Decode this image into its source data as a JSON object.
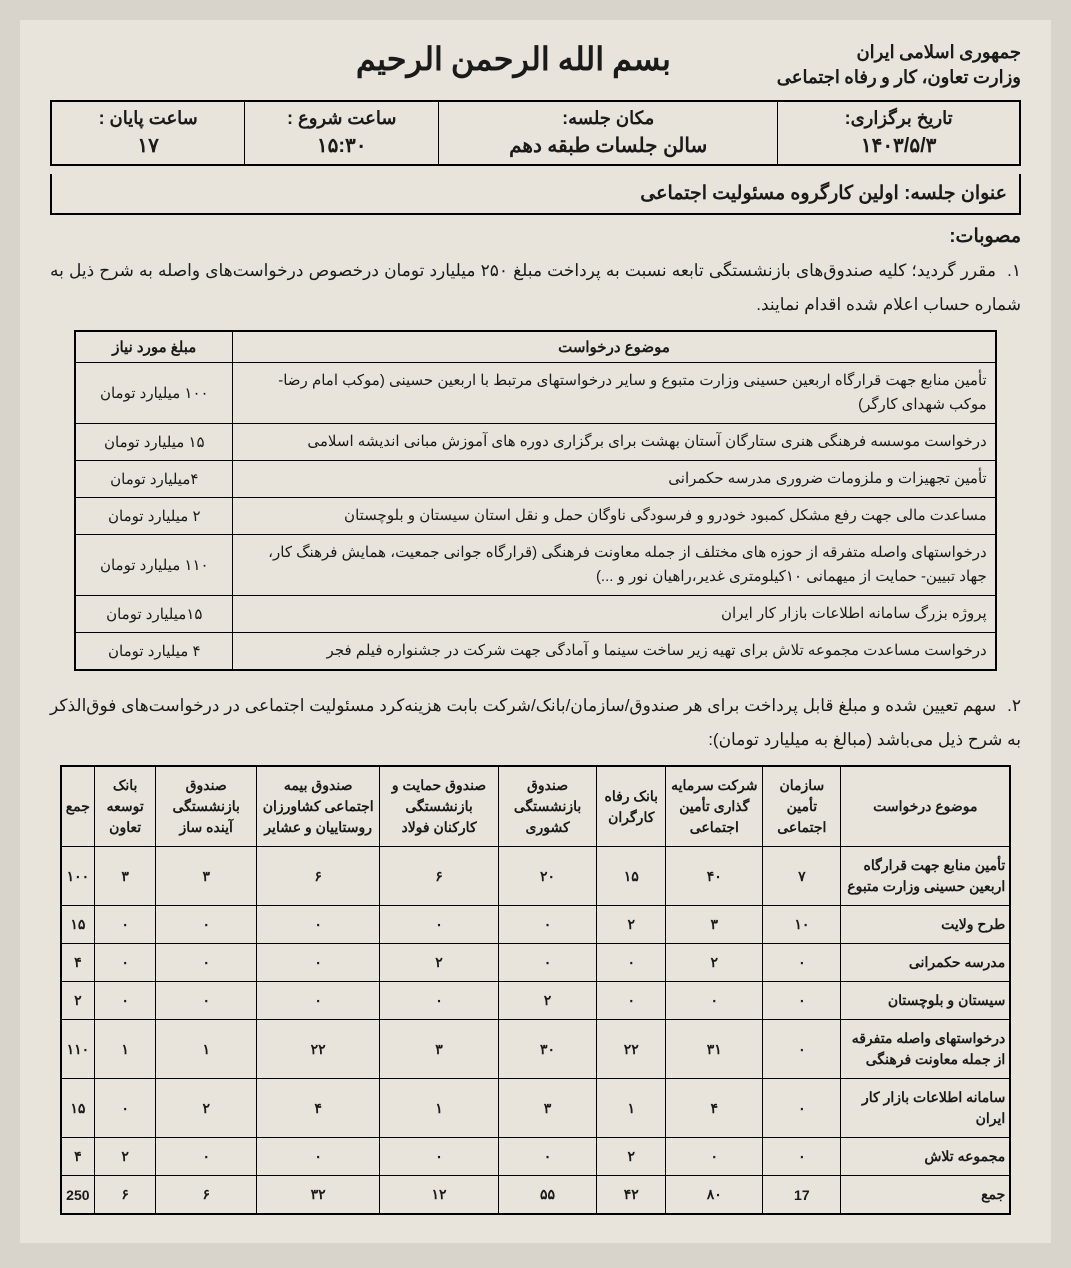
{
  "header": {
    "country": "جمهوری اسلامی ایران",
    "ministry": "وزارت تعاون، کار و رفاه اجتماعی",
    "bismillah": "بسم الله الرحمن الرحیم"
  },
  "meta": {
    "date_label": "تاریخ برگزاری:",
    "date_value": "۱۴۰۳/۵/۳",
    "place_label": "مکان جلسه:",
    "place_value": "سالن جلسات طبقه دهم",
    "start_label": "ساعت شروع :",
    "start_value": "۱۵:۳۰",
    "end_label": "ساعت پایان :",
    "end_value": "۱۷"
  },
  "title": {
    "label": "عنوان جلسه:",
    "value": "اولین کارگروه مسئولیت اجتماعی"
  },
  "approvals_label": "مصوبات:",
  "item1": {
    "num": "۱.",
    "text": "مقرر گردید؛ کلیه صندوق‌های بازنشستگی تابعه نسبت به پرداخت مبلغ ۲۵۰ میلیارد تومان درخصوص درخواست‌های واصله به شرح ذیل به شماره حساب اعلام شده اقدام نمایند."
  },
  "table1": {
    "headers": [
      "موضوع درخواست",
      "مبلغ مورد نیاز"
    ],
    "rows": [
      {
        "desc": "تأمین منابع جهت قرارگاه اربعین حسینی وزارت متبوع و سایر درخواستهای مرتبط با اربعین حسینی (موکب امام رضا-موکب شهدای کارگر)",
        "amount": "۱۰۰ میلیارد تومان"
      },
      {
        "desc": "درخواست موسسه فرهنگی هنری ستارگان آستان بهشت برای برگزاری دوره های آموزش مبانی اندیشه اسلامی",
        "amount": "۱۵ میلیارد تومان"
      },
      {
        "desc": "تأمین تجهیزات و ملزومات ضروری مدرسه حکمرانی",
        "amount": "۴میلیارد تومان"
      },
      {
        "desc": "مساعدت مالی جهت رفع مشکل کمبود خودرو و فرسودگی ناوگان حمل و نقل استان سیستان و بلوچستان",
        "amount": "۲ میلیارد تومان"
      },
      {
        "desc": "درخواستهای واصله متفرقه از حوزه های مختلف از جمله معاونت فرهنگی (قرارگاه جوانی جمعیت، همایش فرهنگ کار، جهاد تبیین- حمایت از میهمانی ۱۰کیلومتری غدیر،راهیان نور و ...)",
        "amount": "۱۱۰ میلیارد تومان"
      },
      {
        "desc": "پروژه بزرگ سامانه اطلاعات بازار کار ایران",
        "amount": "۱۵میلیارد تومان"
      },
      {
        "desc": "درخواست مساعدت مجموعه تلاش برای تهیه زیر ساخت سینما و آمادگی جهت شرکت در جشنواره فیلم فجر",
        "amount": "۴ میلیارد تومان"
      }
    ]
  },
  "item2": {
    "num": "۲.",
    "text": "سهم تعیین شده و مبلغ قابل پرداخت برای هر صندوق/سازمان/بانک/شرکت بابت هزینه‌کرد مسئولیت اجتماعی در درخواست‌های فوق‌الذکر به شرح ذیل می‌باشد (مبالغ به میلیارد تومان):"
  },
  "table2": {
    "headers": [
      "موضوع درخواست",
      "سازمان تأمین اجتماعی",
      "شرکت سرمایه گذاری تأمین اجتماعی",
      "بانک رفاه کارگران",
      "صندوق بازنشستگی کشوری",
      "صندوق حمایت و بازنشستگی کارکنان فولاد",
      "صندوق بیمه اجتماعی کشاورزان روستاییان و عشایر",
      "صندوق بازنشستگی آینده ساز",
      "بانک توسعه تعاون",
      "جمع"
    ],
    "rows": [
      {
        "topic": "تأمین منابع جهت قرارگاه اربعین حسینی وزارت متبوع",
        "c": [
          "۷",
          "۴۰",
          "۱۵",
          "۲۰",
          "۶",
          "۶",
          "۳",
          "۳",
          "۱۰۰"
        ]
      },
      {
        "topic": "طرح ولایت",
        "c": [
          "۱۰",
          "۳",
          "۲",
          "۰",
          "۰",
          "۰",
          "۰",
          "۰",
          "۱۵"
        ]
      },
      {
        "topic": "مدرسه حکمرانی",
        "c": [
          "۰",
          "۲",
          "۰",
          "۰",
          "۲",
          "۰",
          "۰",
          "۰",
          "۴"
        ]
      },
      {
        "topic": "سیستان و بلوچستان",
        "c": [
          "۰",
          "۰",
          "۰",
          "۲",
          "۰",
          "۰",
          "۰",
          "۰",
          "۲"
        ]
      },
      {
        "topic": "درخواستهای واصله متفرقه از جمله معاونت فرهنگی",
        "c": [
          "۰",
          "۳۱",
          "۲۲",
          "۳۰",
          "۳",
          "۲۲",
          "۱",
          "۱",
          "۱۱۰"
        ]
      },
      {
        "topic": "سامانه اطلاعات بازار کار ایران",
        "c": [
          "۰",
          "۴",
          "۱",
          "۳",
          "۱",
          "۴",
          "۲",
          "۰",
          "۱۵"
        ]
      },
      {
        "topic": "مجموعه تلاش",
        "c": [
          "۰",
          "۰",
          "۲",
          "۰",
          "۰",
          "۰",
          "۰",
          "۲",
          "۴"
        ]
      }
    ],
    "total": {
      "topic": "جمع",
      "c": [
        "17",
        "۸۰",
        "۴۲",
        "۵۵",
        "۱۲",
        "۳۲",
        "۶",
        "۶",
        "250"
      ]
    }
  }
}
